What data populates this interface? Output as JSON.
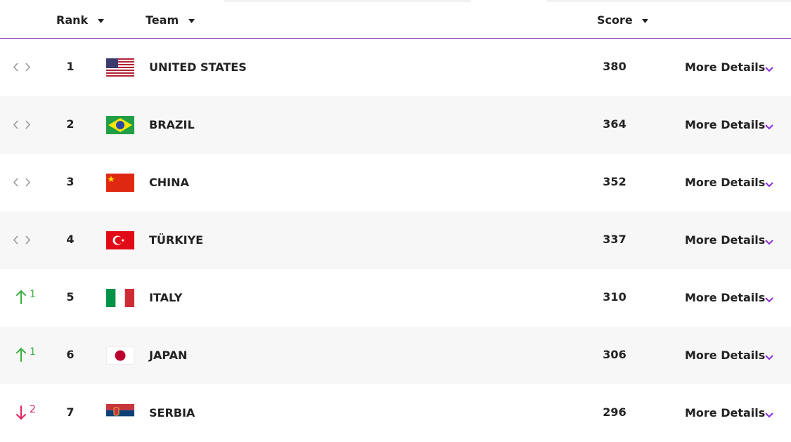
{
  "header": {
    "columns": [
      "Rank",
      "Team",
      "Score"
    ]
  },
  "rows": [
    {
      "rank": 1,
      "team": "UNITED STATES",
      "score": 380
    },
    {
      "rank": 2,
      "team": "BRAZIL",
      "score": 364
    },
    {
      "rank": 3,
      "team": "CHINA",
      "score": 352
    },
    {
      "rank": 4,
      "team": "TÜRKIYE",
      "score": 337
    },
    {
      "rank": 5,
      "team": "ITALY",
      "score": 310,
      "change": 1,
      "trend": "up"
    },
    {
      "rank": 6,
      "team": "JAPAN",
      "score": 306,
      "change": 1,
      "trend": "up"
    },
    {
      "rank": 7,
      "team": "SERBIA",
      "score": 296,
      "change": 2,
      "trend": "down"
    }
  ],
  "details_label": "More Details"
}
